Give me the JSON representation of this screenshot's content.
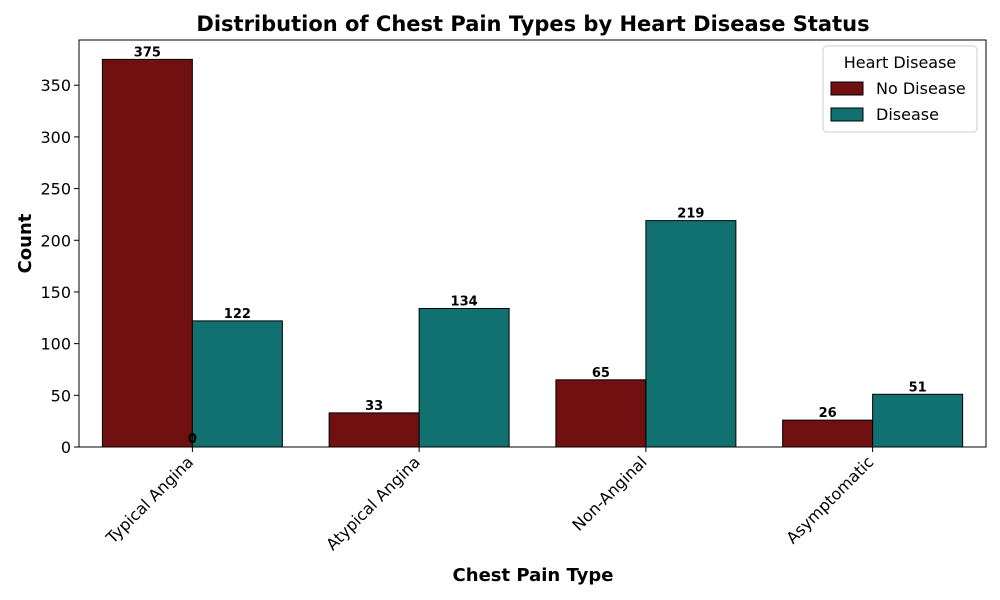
{
  "chart_data": {
    "type": "bar",
    "title": "Distribution of Chest Pain Types by Heart Disease Status",
    "xlabel": "Chest Pain Type",
    "ylabel": "Count",
    "categories": [
      "Typical Angina",
      "Atypical Angina",
      "Non-Anginal",
      "Asymptomatic"
    ],
    "series": [
      {
        "name": "No Disease",
        "values": [
          375,
          33,
          65,
          26
        ],
        "labels": [
          "375",
          "33",
          "65",
          "26"
        ],
        "color": "#701010"
      },
      {
        "name": "Disease",
        "values": [
          122,
          134,
          219,
          51
        ],
        "labels": [
          "122",
          "134",
          "219",
          "51"
        ],
        "color": "#117070"
      }
    ],
    "extra_annotation": "0",
    "ylim": [
      0,
      393.75
    ],
    "yticks": [
      0,
      50,
      100,
      150,
      200,
      250,
      300,
      350
    ],
    "grid": false,
    "legend": {
      "title": "Heart Disease",
      "placement": "top-right"
    }
  }
}
